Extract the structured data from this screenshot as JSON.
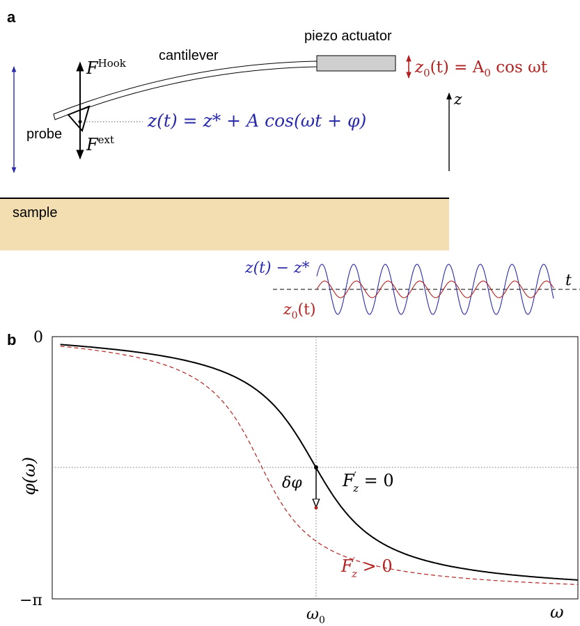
{
  "panel_a": {
    "panel_label": "a",
    "label_cantilever": "cantilever",
    "label_piezo": "piezo actuator",
    "label_probe": "probe",
    "label_sample": "sample",
    "eq_drive": {
      "a": "z",
      "sub": "0",
      "b": "(t) = A",
      "sub2": "0",
      "c": " cos ωt"
    },
    "eq_motion": "z(t) = z* + A cos(ωt + φ)",
    "force_hook": {
      "main": "F",
      "sup": "Hook"
    },
    "force_ext": {
      "main": "F",
      "sup": "ext"
    },
    "axis_z": "z",
    "inset": {
      "label_response": "z(t) − z*",
      "label_drive": {
        "a": "z",
        "sub": "0",
        "b": "(t)"
      },
      "label_t": "t"
    },
    "colors": {
      "blue": "#2a2aaa",
      "red": "#b22222",
      "piezo_fill": "#cfcfcf",
      "sample_fill": "#f3deb2"
    }
  },
  "panel_b": {
    "panel_label": "b",
    "y_label": "φ(ω)",
    "y_tick_top": "0",
    "y_tick_bottom": "−π",
    "x_tick_omega0": {
      "a": "ω",
      "sub": "0"
    },
    "x_label": "ω",
    "label_delta_phi": "δφ",
    "label_fz_zero": {
      "a": "F",
      "sup": "′",
      "sub": "z",
      "b": " = 0"
    },
    "label_fz_pos": {
      "a": "F",
      "sup": "′",
      "sub": "z",
      "b": " > 0"
    },
    "colors": {
      "black_curve": "#000000",
      "red_curve": "#b22222"
    }
  },
  "chart_data": {
    "type": "line",
    "title": "",
    "xlabel": "ω",
    "ylabel": "φ(ω)",
    "ylim": [
      "−π",
      "0"
    ],
    "x_ticks": [
      "ω0"
    ],
    "y_ticks": [
      "0",
      "−π"
    ],
    "grid": false,
    "series": [
      {
        "name": "F′z = 0",
        "style": "solid",
        "color": "#000000"
      },
      {
        "name": "F′z > 0",
        "style": "dashed",
        "color": "#b22222"
      }
    ],
    "annotations": [
      "δφ"
    ]
  }
}
